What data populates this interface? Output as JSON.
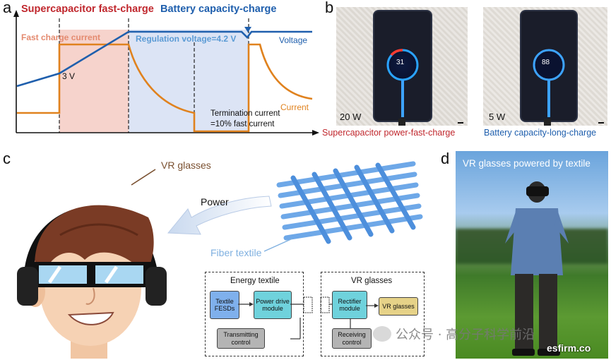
{
  "panels": {
    "a": "a",
    "b": "b",
    "c": "c",
    "d": "d"
  },
  "panel_a": {
    "phase_left": "Supercapacitor fast-charge",
    "phase_right": "Battery capacity-charge",
    "fast_charge_current": "Fast charge current",
    "regulation_voltage": "Regulation voltage=4.2 V",
    "voltage_label": "Voltage",
    "current_label": "Current",
    "three_v": "3 V",
    "termination_line1": "Termination current",
    "termination_line2": "=10% fast current",
    "colors": {
      "voltage": "#1f5fad",
      "current": "#e0821e",
      "red": "#c0272d",
      "blue": "#1f5fad",
      "pink": "#f6d3cc",
      "lightblue": "#dce4f5"
    }
  },
  "panel_b": {
    "phone1_percent": "31",
    "phone1_power": "20 W",
    "phone1_caption": "Supercapacitor power-fast-charge",
    "phone2_percent": "88",
    "phone2_power": "5 W",
    "phone2_caption": "Battery capacity-long-charge"
  },
  "panel_c": {
    "vr_glasses_label": "VR glasses",
    "power_label": "Power",
    "fiber_textile_label": "Fiber textile",
    "energy_textile_title": "Energy textile",
    "vr_glasses_title": "VR glasses",
    "blocks": {
      "textile_fesds": "Textile FESDs",
      "power_drive": "Power drive module",
      "transmitting": "Transmitting control",
      "rectifier": "Rectifier module",
      "vr_glasses_box": "VR glasses",
      "receiving": "Receiving control"
    }
  },
  "panel_d": {
    "title": "VR glasses powered by textile"
  },
  "watermark": {
    "wechat": "公众号 · 高分子科学前沿",
    "site": "esfirm.co"
  }
}
